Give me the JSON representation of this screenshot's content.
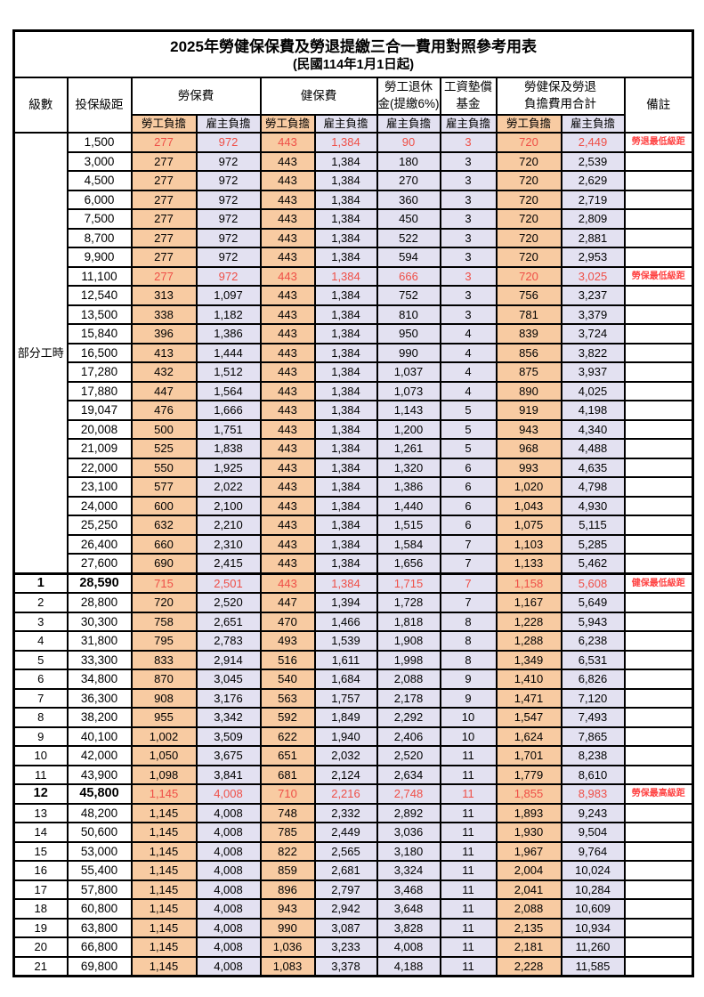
{
  "page": {
    "title": "2025年勞健保保費及勞退提繳三合一費用對照參考用表",
    "subtitle": "(民國114年1月1日起)"
  },
  "columns": {
    "level": "級數",
    "bracket": "投保級距",
    "labor_insurance": "勞保費",
    "health_insurance": "健保費",
    "pension": [
      "勞工退休",
      "金(提繳6%)"
    ],
    "wage_arrears_fund": [
      "工資墊償",
      "基金"
    ],
    "combined_total": [
      "勞健保及勞退",
      "負擔費用合計"
    ],
    "remark": "備註",
    "employee_share": "勞工負擔",
    "employer_share": "雇主負擔"
  },
  "columns_order": [
    "labor_emp",
    "labor_er",
    "health_emp",
    "health_er",
    "pension_er",
    "wage_fund_er",
    "total_emp",
    "total_er"
  ],
  "part_time_label": "部分工時",
  "colors": {
    "employee_bg": "#F8CBA2",
    "employer_bg": "#E3E1F1",
    "highlight_text": "#EF4F47",
    "remark_text": "#FF4242",
    "border": "#000000"
  },
  "rows": [
    {
      "level": "",
      "bracket": "1,500",
      "v": [
        "277",
        "972",
        "443",
        "1,384",
        "90",
        "3",
        "720",
        "2,449"
      ],
      "remark": "勞退最低級距",
      "highlight": true,
      "bold": false
    },
    {
      "level": "",
      "bracket": "3,000",
      "v": [
        "277",
        "972",
        "443",
        "1,384",
        "180",
        "3",
        "720",
        "2,539"
      ],
      "remark": "",
      "highlight": false,
      "bold": false
    },
    {
      "level": "",
      "bracket": "4,500",
      "v": [
        "277",
        "972",
        "443",
        "1,384",
        "270",
        "3",
        "720",
        "2,629"
      ],
      "remark": "",
      "highlight": false,
      "bold": false
    },
    {
      "level": "",
      "bracket": "6,000",
      "v": [
        "277",
        "972",
        "443",
        "1,384",
        "360",
        "3",
        "720",
        "2,719"
      ],
      "remark": "",
      "highlight": false,
      "bold": false
    },
    {
      "level": "",
      "bracket": "7,500",
      "v": [
        "277",
        "972",
        "443",
        "1,384",
        "450",
        "3",
        "720",
        "2,809"
      ],
      "remark": "",
      "highlight": false,
      "bold": false
    },
    {
      "level": "",
      "bracket": "8,700",
      "v": [
        "277",
        "972",
        "443",
        "1,384",
        "522",
        "3",
        "720",
        "2,881"
      ],
      "remark": "",
      "highlight": false,
      "bold": false
    },
    {
      "level": "",
      "bracket": "9,900",
      "v": [
        "277",
        "972",
        "443",
        "1,384",
        "594",
        "3",
        "720",
        "2,953"
      ],
      "remark": "",
      "highlight": false,
      "bold": false
    },
    {
      "level": "",
      "bracket": "11,100",
      "v": [
        "277",
        "972",
        "443",
        "1,384",
        "666",
        "3",
        "720",
        "3,025"
      ],
      "remark": "勞保最低級距",
      "highlight": true,
      "bold": false
    },
    {
      "level": "",
      "bracket": "12,540",
      "v": [
        "313",
        "1,097",
        "443",
        "1,384",
        "752",
        "3",
        "756",
        "3,237"
      ],
      "remark": "",
      "highlight": false,
      "bold": false
    },
    {
      "level": "",
      "bracket": "13,500",
      "v": [
        "338",
        "1,182",
        "443",
        "1,384",
        "810",
        "3",
        "781",
        "3,379"
      ],
      "remark": "",
      "highlight": false,
      "bold": false
    },
    {
      "level": "",
      "bracket": "15,840",
      "v": [
        "396",
        "1,386",
        "443",
        "1,384",
        "950",
        "4",
        "839",
        "3,724"
      ],
      "remark": "",
      "highlight": false,
      "bold": false
    },
    {
      "level": "",
      "bracket": "16,500",
      "v": [
        "413",
        "1,444",
        "443",
        "1,384",
        "990",
        "4",
        "856",
        "3,822"
      ],
      "remark": "",
      "highlight": false,
      "bold": false
    },
    {
      "level": "",
      "bracket": "17,280",
      "v": [
        "432",
        "1,512",
        "443",
        "1,384",
        "1,037",
        "4",
        "875",
        "3,937"
      ],
      "remark": "",
      "highlight": false,
      "bold": false
    },
    {
      "level": "",
      "bracket": "17,880",
      "v": [
        "447",
        "1,564",
        "443",
        "1,384",
        "1,073",
        "4",
        "890",
        "4,025"
      ],
      "remark": "",
      "highlight": false,
      "bold": false
    },
    {
      "level": "",
      "bracket": "19,047",
      "v": [
        "476",
        "1,666",
        "443",
        "1,384",
        "1,143",
        "5",
        "919",
        "4,198"
      ],
      "remark": "",
      "highlight": false,
      "bold": false
    },
    {
      "level": "",
      "bracket": "20,008",
      "v": [
        "500",
        "1,751",
        "443",
        "1,384",
        "1,200",
        "5",
        "943",
        "4,340"
      ],
      "remark": "",
      "highlight": false,
      "bold": false
    },
    {
      "level": "",
      "bracket": "21,009",
      "v": [
        "525",
        "1,838",
        "443",
        "1,384",
        "1,261",
        "5",
        "968",
        "4,488"
      ],
      "remark": "",
      "highlight": false,
      "bold": false
    },
    {
      "level": "",
      "bracket": "22,000",
      "v": [
        "550",
        "1,925",
        "443",
        "1,384",
        "1,320",
        "6",
        "993",
        "4,635"
      ],
      "remark": "",
      "highlight": false,
      "bold": false
    },
    {
      "level": "",
      "bracket": "23,100",
      "v": [
        "577",
        "2,022",
        "443",
        "1,384",
        "1,386",
        "6",
        "1,020",
        "4,798"
      ],
      "remark": "",
      "highlight": false,
      "bold": false
    },
    {
      "level": "",
      "bracket": "24,000",
      "v": [
        "600",
        "2,100",
        "443",
        "1,384",
        "1,440",
        "6",
        "1,043",
        "4,930"
      ],
      "remark": "",
      "highlight": false,
      "bold": false
    },
    {
      "level": "",
      "bracket": "25,250",
      "v": [
        "632",
        "2,210",
        "443",
        "1,384",
        "1,515",
        "6",
        "1,075",
        "5,115"
      ],
      "remark": "",
      "highlight": false,
      "bold": false
    },
    {
      "level": "",
      "bracket": "26,400",
      "v": [
        "660",
        "2,310",
        "443",
        "1,384",
        "1,584",
        "7",
        "1,103",
        "5,285"
      ],
      "remark": "",
      "highlight": false,
      "bold": false
    },
    {
      "level": "",
      "bracket": "27,600",
      "v": [
        "690",
        "2,415",
        "443",
        "1,384",
        "1,656",
        "7",
        "1,133",
        "5,462"
      ],
      "remark": "",
      "highlight": false,
      "bold": false
    },
    {
      "level": "1",
      "bracket": "28,590",
      "v": [
        "715",
        "2,501",
        "443",
        "1,384",
        "1,715",
        "7",
        "1,158",
        "5,608"
      ],
      "remark": "健保最低級距",
      "highlight": true,
      "bold": true
    },
    {
      "level": "2",
      "bracket": "28,800",
      "v": [
        "720",
        "2,520",
        "447",
        "1,394",
        "1,728",
        "7",
        "1,167",
        "5,649"
      ],
      "remark": "",
      "highlight": false,
      "bold": false
    },
    {
      "level": "3",
      "bracket": "30,300",
      "v": [
        "758",
        "2,651",
        "470",
        "1,466",
        "1,818",
        "8",
        "1,228",
        "5,943"
      ],
      "remark": "",
      "highlight": false,
      "bold": false
    },
    {
      "level": "4",
      "bracket": "31,800",
      "v": [
        "795",
        "2,783",
        "493",
        "1,539",
        "1,908",
        "8",
        "1,288",
        "6,238"
      ],
      "remark": "",
      "highlight": false,
      "bold": false
    },
    {
      "level": "5",
      "bracket": "33,300",
      "v": [
        "833",
        "2,914",
        "516",
        "1,611",
        "1,998",
        "8",
        "1,349",
        "6,531"
      ],
      "remark": "",
      "highlight": false,
      "bold": false
    },
    {
      "level": "6",
      "bracket": "34,800",
      "v": [
        "870",
        "3,045",
        "540",
        "1,684",
        "2,088",
        "9",
        "1,410",
        "6,826"
      ],
      "remark": "",
      "highlight": false,
      "bold": false
    },
    {
      "level": "7",
      "bracket": "36,300",
      "v": [
        "908",
        "3,176",
        "563",
        "1,757",
        "2,178",
        "9",
        "1,471",
        "7,120"
      ],
      "remark": "",
      "highlight": false,
      "bold": false
    },
    {
      "level": "8",
      "bracket": "38,200",
      "v": [
        "955",
        "3,342",
        "592",
        "1,849",
        "2,292",
        "10",
        "1,547",
        "7,493"
      ],
      "remark": "",
      "highlight": false,
      "bold": false
    },
    {
      "level": "9",
      "bracket": "40,100",
      "v": [
        "1,002",
        "3,509",
        "622",
        "1,940",
        "2,406",
        "10",
        "1,624",
        "7,865"
      ],
      "remark": "",
      "highlight": false,
      "bold": false
    },
    {
      "level": "10",
      "bracket": "42,000",
      "v": [
        "1,050",
        "3,675",
        "651",
        "2,032",
        "2,520",
        "11",
        "1,701",
        "8,238"
      ],
      "remark": "",
      "highlight": false,
      "bold": false
    },
    {
      "level": "11",
      "bracket": "43,900",
      "v": [
        "1,098",
        "3,841",
        "681",
        "2,124",
        "2,634",
        "11",
        "1,779",
        "8,610"
      ],
      "remark": "",
      "highlight": false,
      "bold": false
    },
    {
      "level": "12",
      "bracket": "45,800",
      "v": [
        "1,145",
        "4,008",
        "710",
        "2,216",
        "2,748",
        "11",
        "1,855",
        "8,983"
      ],
      "remark": "勞保最高級距",
      "highlight": true,
      "bold": true
    },
    {
      "level": "13",
      "bracket": "48,200",
      "v": [
        "1,145",
        "4,008",
        "748",
        "2,332",
        "2,892",
        "11",
        "1,893",
        "9,243"
      ],
      "remark": "",
      "highlight": false,
      "bold": false
    },
    {
      "level": "14",
      "bracket": "50,600",
      "v": [
        "1,145",
        "4,008",
        "785",
        "2,449",
        "3,036",
        "11",
        "1,930",
        "9,504"
      ],
      "remark": "",
      "highlight": false,
      "bold": false
    },
    {
      "level": "15",
      "bracket": "53,000",
      "v": [
        "1,145",
        "4,008",
        "822",
        "2,565",
        "3,180",
        "11",
        "1,967",
        "9,764"
      ],
      "remark": "",
      "highlight": false,
      "bold": false
    },
    {
      "level": "16",
      "bracket": "55,400",
      "v": [
        "1,145",
        "4,008",
        "859",
        "2,681",
        "3,324",
        "11",
        "2,004",
        "10,024"
      ],
      "remark": "",
      "highlight": false,
      "bold": false
    },
    {
      "level": "17",
      "bracket": "57,800",
      "v": [
        "1,145",
        "4,008",
        "896",
        "2,797",
        "3,468",
        "11",
        "2,041",
        "10,284"
      ],
      "remark": "",
      "highlight": false,
      "bold": false
    },
    {
      "level": "18",
      "bracket": "60,800",
      "v": [
        "1,145",
        "4,008",
        "943",
        "2,942",
        "3,648",
        "11",
        "2,088",
        "10,609"
      ],
      "remark": "",
      "highlight": false,
      "bold": false
    },
    {
      "level": "19",
      "bracket": "63,800",
      "v": [
        "1,145",
        "4,008",
        "990",
        "3,087",
        "3,828",
        "11",
        "2,135",
        "10,934"
      ],
      "remark": "",
      "highlight": false,
      "bold": false
    },
    {
      "level": "20",
      "bracket": "66,800",
      "v": [
        "1,145",
        "4,008",
        "1,036",
        "3,233",
        "4,008",
        "11",
        "2,181",
        "11,260"
      ],
      "remark": "",
      "highlight": false,
      "bold": false
    },
    {
      "level": "21",
      "bracket": "69,800",
      "v": [
        "1,145",
        "4,008",
        "1,083",
        "3,378",
        "4,188",
        "11",
        "2,228",
        "11,585"
      ],
      "remark": "",
      "highlight": false,
      "bold": false
    }
  ]
}
